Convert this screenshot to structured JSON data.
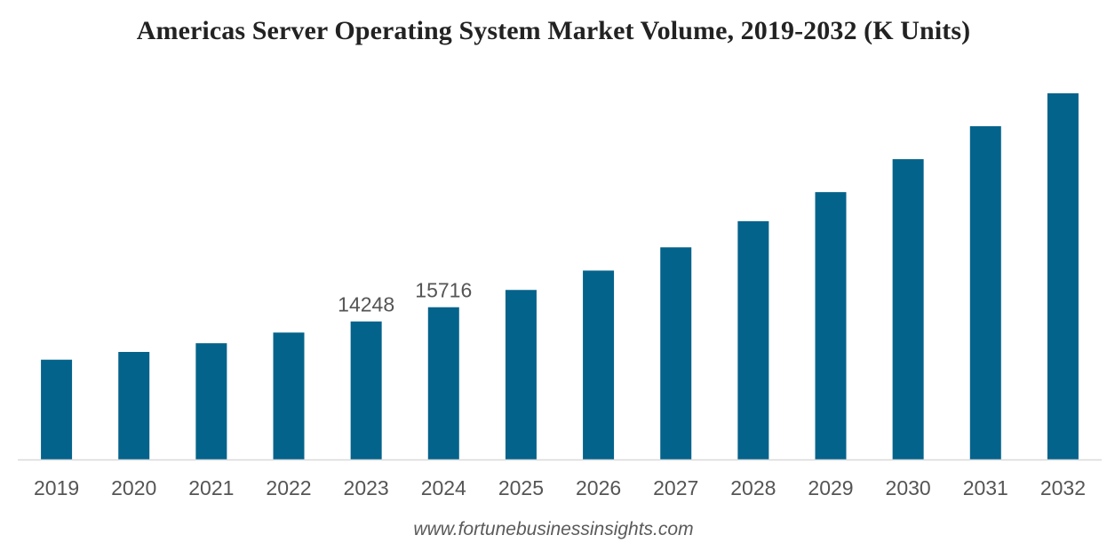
{
  "chart_data": {
    "type": "bar",
    "title": "Americas Server Operating System Market Volume, 2019-2032 (K Units)",
    "xlabel": "",
    "ylabel": "",
    "categories": [
      "2019",
      "2020",
      "2021",
      "2022",
      "2023",
      "2024",
      "2025",
      "2026",
      "2027",
      "2028",
      "2029",
      "2030",
      "2031",
      "2032"
    ],
    "values": [
      10300,
      11100,
      12000,
      13100,
      14248,
      15716,
      17500,
      19500,
      21900,
      24600,
      27600,
      31000,
      34400,
      37800
    ],
    "data_labels": [
      {
        "category": "2023",
        "text": "14248"
      },
      {
        "category": "2024",
        "text": "15716"
      }
    ],
    "ylim": [
      0,
      40000
    ],
    "grid": false,
    "legend": "none",
    "bar_color": "#04638b",
    "axis_color": "#d9d9d9"
  },
  "footer": {
    "source": "www.fortunebusinessinsights.com"
  }
}
